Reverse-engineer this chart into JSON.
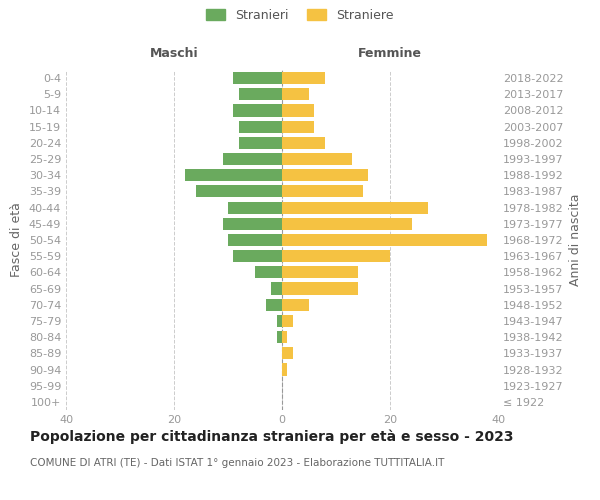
{
  "age_groups": [
    "100+",
    "95-99",
    "90-94",
    "85-89",
    "80-84",
    "75-79",
    "70-74",
    "65-69",
    "60-64",
    "55-59",
    "50-54",
    "45-49",
    "40-44",
    "35-39",
    "30-34",
    "25-29",
    "20-24",
    "15-19",
    "10-14",
    "5-9",
    "0-4"
  ],
  "birth_years": [
    "≤ 1922",
    "1923-1927",
    "1928-1932",
    "1933-1937",
    "1938-1942",
    "1943-1947",
    "1948-1952",
    "1953-1957",
    "1958-1962",
    "1963-1967",
    "1968-1972",
    "1973-1977",
    "1978-1982",
    "1983-1987",
    "1988-1992",
    "1993-1997",
    "1998-2002",
    "2003-2007",
    "2008-2012",
    "2013-2017",
    "2018-2022"
  ],
  "males": [
    0,
    0,
    0,
    0,
    1,
    1,
    3,
    2,
    5,
    9,
    10,
    11,
    10,
    16,
    18,
    11,
    8,
    8,
    9,
    8,
    9
  ],
  "females": [
    0,
    0,
    1,
    2,
    1,
    2,
    5,
    14,
    14,
    20,
    38,
    24,
    27,
    15,
    16,
    13,
    8,
    6,
    6,
    5,
    8
  ],
  "male_color": "#6aaa5e",
  "female_color": "#f5c242",
  "bar_height": 0.75,
  "xlim": 40,
  "title": "Popolazione per cittadinanza straniera per età e sesso - 2023",
  "subtitle": "COMUNE DI ATRI (TE) - Dati ISTAT 1° gennaio 2023 - Elaborazione TUTTITALIA.IT",
  "xlabel_left": "Maschi",
  "xlabel_right": "Femmine",
  "ylabel_left": "Fasce di età",
  "ylabel_right": "Anni di nascita",
  "legend_male": "Stranieri",
  "legend_female": "Straniere",
  "bg_color": "#ffffff",
  "grid_color": "#cccccc",
  "tick_color": "#999999",
  "title_fontsize": 10,
  "subtitle_fontsize": 7.5,
  "label_fontsize": 9,
  "tick_fontsize": 8
}
